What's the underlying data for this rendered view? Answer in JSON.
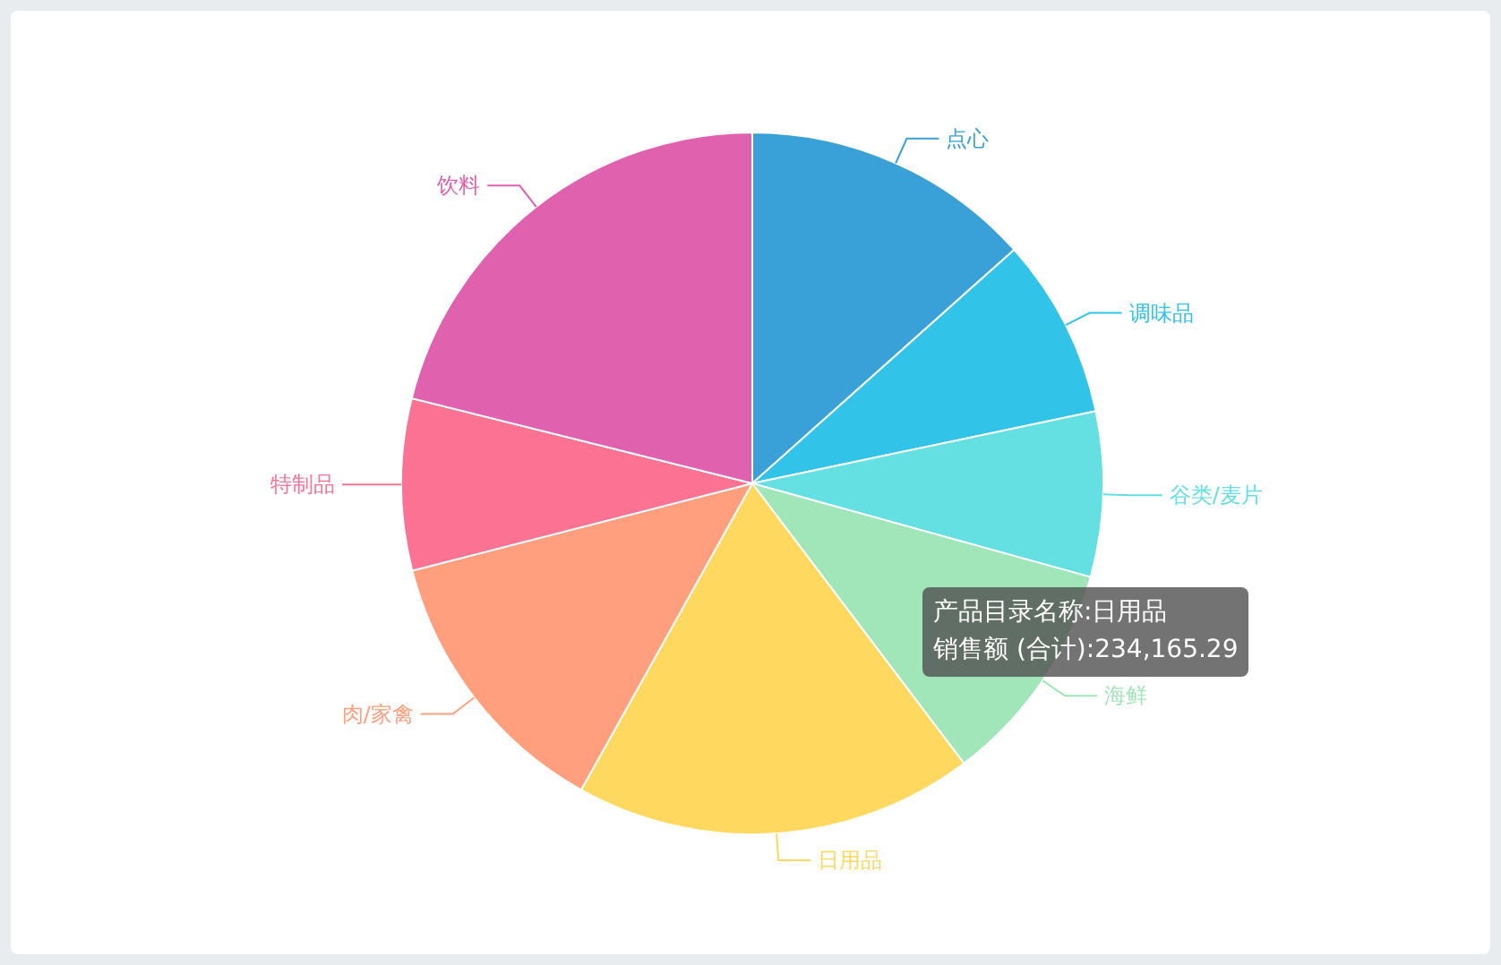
{
  "chart_data": {
    "type": "pie",
    "categories": [
      "点心",
      "调味品",
      "谷类/麦片",
      "海鲜",
      "日用品",
      "肉/家禽",
      "特制品",
      "饮料"
    ],
    "values": [
      13.4,
      8.3,
      7.6,
      10.4,
      18.4,
      12.9,
      7.9,
      21.1
    ],
    "colors": [
      "#3aa1d8",
      "#32c3e8",
      "#64dfe2",
      "#a0e6b8",
      "#ffd95f",
      "#ff9f7e",
      "#fb7293",
      "#e062ae"
    ],
    "annotations": [
      "产品目录名称:日用品",
      "销售额 (合计):234,165.29"
    ],
    "legend": false
  }
}
